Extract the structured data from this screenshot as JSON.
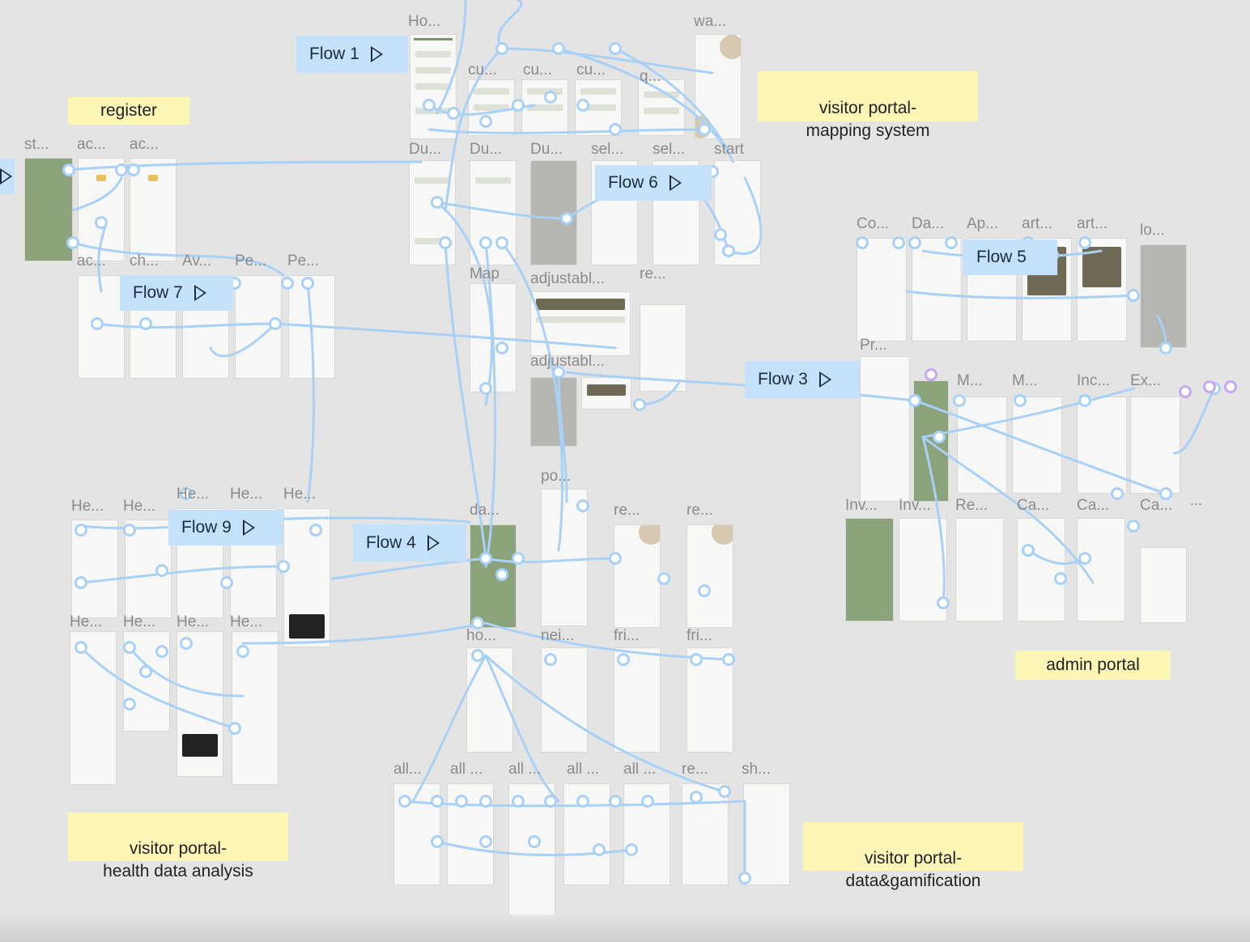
{
  "canvas": {
    "frame_labels": [
      "Ho...",
      "wa...",
      "cu...",
      "cu...",
      "cu...",
      "q...",
      "st...",
      "ac...",
      "ac...",
      "Du...",
      "Du...",
      "Du...",
      "sel...",
      "sel...",
      "start",
      "ac...",
      "ch...",
      "Av...",
      "Pe...",
      "Pe...",
      "Map",
      "adjustabl...",
      "re...",
      "adjustabl...",
      "Co...",
      "Da...",
      "Ap...",
      "art...",
      "art...",
      "lo...",
      "Pr...",
      "M...",
      "M...",
      "Inc...",
      "Ex...",
      "Inv...",
      "Inv...",
      "Re...",
      "Ca...",
      "Ca...",
      "Ca...",
      "He...",
      "He...",
      "He...",
      "He...",
      "He...",
      "He...",
      "He...",
      "He...",
      "He...",
      "po...",
      "da...",
      "re...",
      "re...",
      "ho...",
      "nei...",
      "fri...",
      "fri...",
      "all...",
      "all ...",
      "all ...",
      "all ...",
      "all ...",
      "re...",
      "sh..."
    ],
    "flows": [
      {
        "label": "Flow 1"
      },
      {
        "label": "Flow 6"
      },
      {
        "label": "Flow 7"
      },
      {
        "label": "Flow 5"
      },
      {
        "label": "Flow 3"
      },
      {
        "label": "Flow 9"
      },
      {
        "label": "Flow 4"
      }
    ],
    "notes": [
      {
        "text": "register"
      },
      {
        "text": "visitor portal-\nmapping system"
      },
      {
        "text": "admin portal"
      },
      {
        "text": "visitor portal-\nhealth data analysis"
      },
      {
        "text": "visitor portal-\ndata&gamification"
      }
    ],
    "colors": {
      "background": "#e4e4e4",
      "flow_badge": "#c3e1fb",
      "connector": "#a9d1f6",
      "sticky_note": "#fbf5b6",
      "brand_green": "#8ba37a"
    }
  }
}
